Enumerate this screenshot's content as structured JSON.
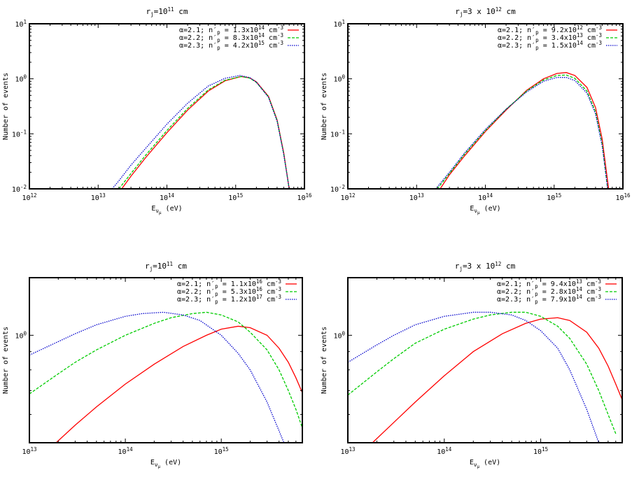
{
  "chart_data": [
    {
      "type": "line",
      "title": "r_j=10^11 cm",
      "xlabel": "E_νμ (eV)",
      "ylabel": "Number of events",
      "xscale": "log",
      "yscale": "log",
      "xlim": [
        1000000000000.0,
        1e+16
      ],
      "ylim": [
        0.01,
        10
      ],
      "xticks": [
        {
          "b": "10",
          "e": "12",
          "v": 1000000000000.0
        },
        {
          "b": "10",
          "e": "13",
          "v": 10000000000000.0
        },
        {
          "b": "10",
          "e": "14",
          "v": 100000000000000.0
        },
        {
          "b": "10",
          "e": "15",
          "v": 1000000000000000.0
        },
        {
          "b": "10",
          "e": "16",
          "v": 1e+16
        }
      ],
      "yticks": [
        {
          "b": "10",
          "e": "-2",
          "v": 0.01
        },
        {
          "b": "10",
          "e": "-1",
          "v": 0.1
        },
        {
          "b": "10",
          "e": "0",
          "v": 1
        },
        {
          "b": "10",
          "e": "1",
          "v": 10
        }
      ],
      "legend_position": "top-right",
      "series": [
        {
          "name": "α=2.1; n′p = 1.3x10^14 cm^-3",
          "color": "#ff0000",
          "dash": "solid",
          "x": [
            22000000000000.0,
            30000000000000.0,
            50000000000000.0,
            100000000000000.0,
            200000000000000.0,
            400000000000000.0,
            700000000000000.0,
            1200000000000000.0,
            1600000000000000.0,
            2000000000000000.0,
            3000000000000000.0,
            4000000000000000.0,
            5000000000000000.0,
            6000000000000000.0
          ],
          "y": [
            0.01,
            0.017,
            0.038,
            0.105,
            0.27,
            0.6,
            0.92,
            1.1,
            1.04,
            0.88,
            0.48,
            0.18,
            0.045,
            0.01
          ]
        },
        {
          "name": "α=2.2; n′p = 8.3x10^14 cm^-3",
          "color": "#00cc00",
          "dash": "dashed",
          "x": [
            20000000000000.0,
            30000000000000.0,
            50000000000000.0,
            100000000000000.0,
            200000000000000.0,
            400000000000000.0,
            700000000000000.0,
            1200000000000000.0,
            1600000000000000.0,
            2000000000000000.0,
            3000000000000000.0,
            4000000000000000.0,
            5000000000000000.0,
            6000000000000000.0
          ],
          "y": [
            0.01,
            0.019,
            0.042,
            0.115,
            0.29,
            0.63,
            0.94,
            1.1,
            1.03,
            0.86,
            0.47,
            0.175,
            0.043,
            0.01
          ]
        },
        {
          "name": "α=2.3; n′p = 4.2x10^15 cm^-3",
          "color": "#0000cc",
          "dash": "dotted",
          "x": [
            16000000000000.0,
            20000000000000.0,
            30000000000000.0,
            50000000000000.0,
            100000000000000.0,
            200000000000000.0,
            400000000000000.0,
            700000000000000.0,
            1150000000000000.0,
            1600000000000000.0,
            2000000000000000.0,
            3000000000000000.0,
            4000000000000000.0,
            5000000000000000.0,
            6000000000000000.0
          ],
          "y": [
            0.01,
            0.014,
            0.027,
            0.056,
            0.15,
            0.36,
            0.74,
            1.02,
            1.15,
            1.05,
            0.87,
            0.46,
            0.17,
            0.042,
            0.01
          ]
        }
      ]
    },
    {
      "type": "line",
      "title": "r_j=3 x 10^12 cm",
      "xlabel": "E_νμ (eV)",
      "ylabel": "Number of events",
      "xscale": "log",
      "yscale": "log",
      "xlim": [
        1000000000000.0,
        1e+16
      ],
      "ylim": [
        0.01,
        10
      ],
      "xticks": [
        {
          "b": "10",
          "e": "12",
          "v": 1000000000000.0
        },
        {
          "b": "10",
          "e": "13",
          "v": 10000000000000.0
        },
        {
          "b": "10",
          "e": "14",
          "v": 100000000000000.0
        },
        {
          "b": "10",
          "e": "15",
          "v": 1000000000000000.0
        },
        {
          "b": "10",
          "e": "16",
          "v": 1e+16
        }
      ],
      "yticks": [
        {
          "b": "10",
          "e": "-2",
          "v": 0.01
        },
        {
          "b": "10",
          "e": "-1",
          "v": 0.1
        },
        {
          "b": "10",
          "e": "0",
          "v": 1
        },
        {
          "b": "10",
          "e": "1",
          "v": 10
        }
      ],
      "legend_position": "top-right",
      "series": [
        {
          "name": "α=2.1; n′p = 9.2x10^12 cm^-3",
          "color": "#ff0000",
          "dash": "solid",
          "x": [
            22000000000000.0,
            30000000000000.0,
            50000000000000.0,
            100000000000000.0,
            200000000000000.0,
            400000000000000.0,
            700000000000000.0,
            1100000000000000.0,
            1500000000000000.0,
            2000000000000000.0,
            3000000000000000.0,
            4000000000000000.0,
            5000000000000000.0,
            6200000000000000.0
          ],
          "y": [
            0.01,
            0.018,
            0.04,
            0.11,
            0.27,
            0.62,
            1.0,
            1.25,
            1.3,
            1.15,
            0.7,
            0.3,
            0.08,
            0.01
          ]
        },
        {
          "name": "α=2.2; n′p = 3.4x10^13 cm^-3",
          "color": "#00cc00",
          "dash": "dashed",
          "x": [
            20000000000000.0,
            30000000000000.0,
            50000000000000.0,
            100000000000000.0,
            200000000000000.0,
            400000000000000.0,
            700000000000000.0,
            1100000000000000.0,
            1500000000000000.0,
            2000000000000000.0,
            3000000000000000.0,
            4000000000000000.0,
            5000000000000000.0,
            6000000000000000.0
          ],
          "y": [
            0.01,
            0.019,
            0.043,
            0.115,
            0.28,
            0.6,
            0.95,
            1.15,
            1.17,
            1.02,
            0.6,
            0.25,
            0.065,
            0.01
          ]
        },
        {
          "name": "α=2.3; n′p = 1.5x10^14 cm^-3",
          "color": "#0000cc",
          "dash": "dotted",
          "x": [
            19000000000000.0,
            30000000000000.0,
            50000000000000.0,
            100000000000000.0,
            200000000000000.0,
            400000000000000.0,
            700000000000000.0,
            1100000000000000.0,
            1500000000000000.0,
            2000000000000000.0,
            3000000000000000.0,
            4000000000000000.0,
            5000000000000000.0,
            6000000000000000.0
          ],
          "y": [
            0.01,
            0.02,
            0.045,
            0.12,
            0.28,
            0.58,
            0.9,
            1.06,
            1.06,
            0.93,
            0.55,
            0.23,
            0.06,
            0.01
          ]
        }
      ]
    },
    {
      "type": "line",
      "title": "r_j=10^11 cm",
      "xlabel": "E_νμ (eV)",
      "ylabel": "Number of events",
      "xscale": "log",
      "yscale": "log",
      "xlim": [
        10000000000000.0,
        7000000000000000.0
      ],
      "ylim": [
        0.5,
        1.45
      ],
      "xticks": [
        {
          "b": "10",
          "e": "13",
          "v": 10000000000000.0
        },
        {
          "b": "10",
          "e": "14",
          "v": 100000000000000.0
        },
        {
          "b": "10",
          "e": "15",
          "v": 1000000000000000.0
        }
      ],
      "yticks": [
        {
          "b": "10",
          "e": "0",
          "v": 1
        }
      ],
      "legend_position": "top-right",
      "series": [
        {
          "name": "α=2.1; n′p = 1.1x10^16 cm^-3",
          "color": "#ff0000",
          "dash": "solid",
          "x": [
            19000000000000.0,
            30000000000000.0,
            50000000000000.0,
            100000000000000.0,
            200000000000000.0,
            400000000000000.0,
            700000000000000.0,
            1000000000000000.0,
            1500000000000000.0,
            2000000000000000.0,
            3000000000000000.0,
            4000000000000000.0,
            5000000000000000.0,
            6000000000000000.0,
            7000000000000000.0
          ],
          "y": [
            0.5,
            0.56,
            0.63,
            0.73,
            0.83,
            0.93,
            1.0,
            1.04,
            1.06,
            1.05,
            1.0,
            0.92,
            0.84,
            0.76,
            0.69
          ]
        },
        {
          "name": "α=2.2; n′p = 5.3x10^16 cm^-3",
          "color": "#00cc00",
          "dash": "dashed",
          "x": [
            10000000000000.0,
            20000000000000.0,
            30000000000000.0,
            50000000000000.0,
            100000000000000.0,
            200000000000000.0,
            300000000000000.0,
            500000000000000.0,
            700000000000000.0,
            1000000000000000.0,
            1500000000000000.0,
            2000000000000000.0,
            3000000000000000.0,
            4000000000000000.0,
            5000000000000000.0,
            6000000000000000.0,
            7000000000000000.0
          ],
          "y": [
            0.685,
            0.78,
            0.84,
            0.91,
            1.0,
            1.08,
            1.12,
            1.15,
            1.16,
            1.14,
            1.09,
            1.02,
            0.91,
            0.8,
            0.7,
            0.62,
            0.55
          ]
        },
        {
          "name": "α=2.3; n′p = 1.2x10^17 cm^-3",
          "color": "#0000cc",
          "dash": "dotted",
          "x": [
            10000000000000.0,
            20000000000000.0,
            30000000000000.0,
            50000000000000.0,
            100000000000000.0,
            150000000000000.0,
            250000000000000.0,
            400000000000000.0,
            600000000000000.0,
            1000000000000000.0,
            1500000000000000.0,
            2000000000000000.0,
            3000000000000000.0,
            4000000000000000.0,
            4500000000000000.0
          ],
          "y": [
            0.88,
            0.96,
            1.01,
            1.07,
            1.13,
            1.15,
            1.16,
            1.14,
            1.1,
            1.0,
            0.89,
            0.8,
            0.65,
            0.54,
            0.5
          ]
        }
      ]
    },
    {
      "type": "line",
      "title": "r_j=3 x 10^12 cm",
      "xlabel": "E_νμ (eV)",
      "ylabel": "Number of events",
      "xscale": "log",
      "yscale": "log",
      "xlim": [
        10000000000000.0,
        7000000000000000.0
      ],
      "ylim": [
        0.5,
        1.45
      ],
      "xticks": [
        {
          "b": "10",
          "e": "13",
          "v": 10000000000000.0
        },
        {
          "b": "10",
          "e": "14",
          "v": 100000000000000.0
        },
        {
          "b": "10",
          "e": "15",
          "v": 1000000000000000.0
        }
      ],
      "yticks": [
        {
          "b": "10",
          "e": "0",
          "v": 1
        }
      ],
      "legend_position": "top-right",
      "series": [
        {
          "name": "α=2.1; n′p = 9.4x10^13 cm^-3",
          "color": "#ff0000",
          "dash": "solid",
          "x": [
            18000000000000.0,
            30000000000000.0,
            50000000000000.0,
            100000000000000.0,
            200000000000000.0,
            400000000000000.0,
            700000000000000.0,
            1000000000000000.0,
            1500000000000000.0,
            2000000000000000.0,
            3000000000000000.0,
            4000000000000000.0,
            5000000000000000.0,
            6000000000000000.0,
            7000000000000000.0
          ],
          "y": [
            0.5,
            0.57,
            0.65,
            0.77,
            0.9,
            1.01,
            1.08,
            1.11,
            1.12,
            1.1,
            1.02,
            0.92,
            0.82,
            0.73,
            0.66
          ]
        },
        {
          "name": "α=2.2; n′p = 2.8x10^14 cm^-3",
          "color": "#00cc00",
          "dash": "dashed",
          "x": [
            10000000000000.0,
            20000000000000.0,
            30000000000000.0,
            50000000000000.0,
            100000000000000.0,
            200000000000000.0,
            300000000000000.0,
            500000000000000.0,
            700000000000000.0,
            1000000000000000.0,
            1500000000000000.0,
            2000000000000000.0,
            3000000000000000.0,
            4000000000000000.0,
            5000000000000000.0,
            6000000000000000.0
          ],
          "y": [
            0.68,
            0.79,
            0.86,
            0.95,
            1.04,
            1.11,
            1.14,
            1.16,
            1.16,
            1.13,
            1.06,
            0.98,
            0.83,
            0.7,
            0.6,
            0.53
          ]
        },
        {
          "name": "α=2.3; n′p = 7.9x10^14 cm^-3",
          "color": "#0000cc",
          "dash": "dotted",
          "x": [
            10000000000000.0,
            20000000000000.0,
            30000000000000.0,
            50000000000000.0,
            100000000000000.0,
            200000000000000.0,
            300000000000000.0,
            500000000000000.0,
            700000000000000.0,
            1000000000000000.0,
            1500000000000000.0,
            2000000000000000.0,
            3000000000000000.0,
            4000000000000000.0
          ],
          "y": [
            0.84,
            0.94,
            1.0,
            1.07,
            1.13,
            1.16,
            1.16,
            1.14,
            1.1,
            1.03,
            0.92,
            0.8,
            0.62,
            0.5
          ]
        }
      ]
    }
  ]
}
